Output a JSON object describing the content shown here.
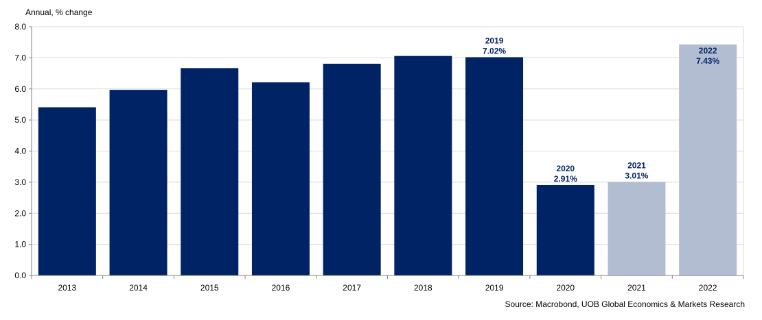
{
  "chart_data": {
    "type": "bar",
    "title": "",
    "ylabel": "Annual, % change",
    "xlabel": "",
    "ylim": [
      0,
      8
    ],
    "yticks": [
      "0.0",
      "1.0",
      "2.0",
      "3.0",
      "4.0",
      "5.0",
      "6.0",
      "7.0",
      "8.0"
    ],
    "categories": [
      "2013",
      "2014",
      "2015",
      "2016",
      "2017",
      "2018",
      "2019",
      "2020",
      "2021",
      "2022"
    ],
    "values": [
      5.41,
      5.97,
      6.67,
      6.21,
      6.81,
      7.06,
      7.02,
      2.91,
      3.01,
      7.43
    ],
    "bar_status": [
      "actual",
      "actual",
      "actual",
      "actual",
      "actual",
      "actual",
      "actual",
      "actual",
      "forecast",
      "forecast"
    ],
    "annotations": [
      {
        "category": "2019",
        "year": "2019",
        "value": "7.02%",
        "position": "above"
      },
      {
        "category": "2020",
        "year": "2020",
        "value": "2.91%",
        "position": "above"
      },
      {
        "category": "2021",
        "year": "2021",
        "value": "3.01%",
        "position": "above"
      },
      {
        "category": "2022",
        "year": "2022",
        "value": "7.43%",
        "position": "inside"
      }
    ],
    "grid": true,
    "source": "Source: Macrobond, UOB Global Economics & Markets Research"
  },
  "colors": {
    "actual": "#002366",
    "forecast": "#b3bdd2",
    "label_dark": "#002366",
    "grid": "#d9d9d9",
    "axis": "#808080"
  }
}
